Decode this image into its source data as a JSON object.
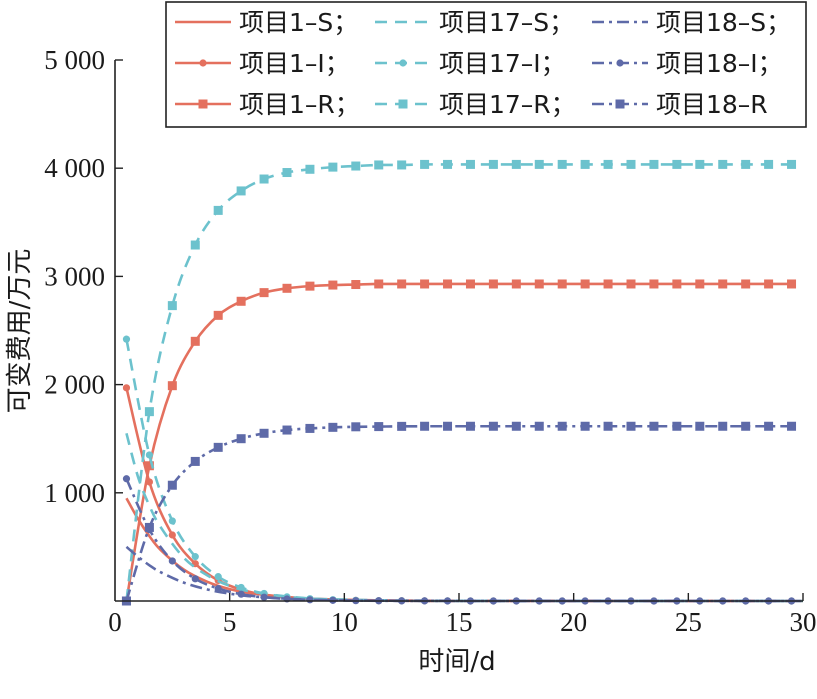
{
  "chart_data": {
    "type": "line",
    "title": "",
    "xlabel": "时间/d",
    "ylabel": "可变费用/万元",
    "xlim": [
      0,
      30
    ],
    "ylim": [
      0,
      5000
    ],
    "x_ticks": [
      0,
      5,
      10,
      15,
      20,
      25,
      30
    ],
    "x_tick_labels": [
      "0",
      "5",
      "10",
      "15",
      "20",
      "25",
      "30"
    ],
    "y_ticks": [
      1000,
      2000,
      3000,
      4000,
      5000
    ],
    "y_tick_labels": [
      "1 000",
      "2 000",
      "3 000",
      "4 000",
      "5 000"
    ],
    "grid": false,
    "legend_position": "top-right",
    "marker_x": [
      0.5,
      1.5,
      2.5,
      3.5,
      4.5,
      5.5,
      6.5,
      7.5,
      8.5,
      9.5,
      10.5,
      11.5,
      12.5,
      13.5,
      14.5,
      15.5,
      16.5,
      17.5,
      18.5,
      19.5,
      20.5,
      21.5,
      22.5,
      23.5,
      24.5,
      25.5,
      26.5,
      27.5,
      28.5,
      29.5
    ],
    "series": [
      {
        "name": "项目1–S；",
        "project": "1",
        "kind": "S",
        "color": "#e4705e",
        "dash": "solid",
        "marker": "none",
        "x": [
          0.5,
          1,
          1.5,
          2,
          3,
          4,
          5,
          6,
          8,
          10,
          15,
          30
        ],
        "values": [
          950,
          760,
          600,
          470,
          290,
          180,
          110,
          70,
          28,
          12,
          2,
          0
        ]
      },
      {
        "name": "项目1–I；",
        "project": "1",
        "kind": "I",
        "color": "#e4705e",
        "dash": "solid",
        "marker": "circle",
        "x": [
          0.5,
          1.5,
          2.5,
          3.5,
          4.5,
          5.5,
          6.5,
          7.5,
          8.5,
          9.5,
          10.5,
          11.5,
          12.5,
          13.5,
          14.5,
          15.5,
          16.5,
          17.5,
          18.5,
          19.5,
          20.5,
          21.5,
          22.5,
          23.5,
          24.5,
          25.5,
          26.5,
          27.5,
          28.5,
          29.5
        ],
        "values": [
          1970,
          1100,
          610,
          345,
          190,
          105,
          58,
          32,
          18,
          10,
          6,
          3,
          2,
          1,
          1,
          0,
          0,
          0,
          0,
          0,
          0,
          0,
          0,
          0,
          0,
          0,
          0,
          0,
          0,
          0
        ]
      },
      {
        "name": "项目1–R；",
        "project": "1",
        "kind": "R",
        "color": "#e4705e",
        "dash": "solid",
        "marker": "square",
        "x": [
          0.5,
          1.5,
          2.5,
          3.5,
          4.5,
          5.5,
          6.5,
          7.5,
          8.5,
          9.5,
          10.5,
          11.5,
          12.5,
          13.5,
          14.5,
          15.5,
          16.5,
          17.5,
          18.5,
          19.5,
          20.5,
          21.5,
          22.5,
          23.5,
          24.5,
          25.5,
          26.5,
          27.5,
          28.5,
          29.5
        ],
        "values": [
          0,
          1250,
          1990,
          2400,
          2640,
          2770,
          2850,
          2890,
          2910,
          2920,
          2925,
          2930,
          2930,
          2930,
          2930,
          2930,
          2930,
          2930,
          2930,
          2930,
          2930,
          2930,
          2930,
          2930,
          2930,
          2930,
          2930,
          2930,
          2930,
          2930
        ]
      },
      {
        "name": "项目17–S；",
        "project": "17",
        "kind": "S",
        "color": "#6cc2cd",
        "dash": "dashed",
        "marker": "none",
        "x": [
          0.5,
          1,
          1.5,
          2,
          3,
          4,
          5,
          6,
          8,
          10,
          15,
          30
        ],
        "values": [
          1550,
          1150,
          880,
          680,
          400,
          240,
          140,
          85,
          32,
          13,
          2,
          0
        ]
      },
      {
        "name": "项目17–I；",
        "project": "17",
        "kind": "I",
        "color": "#6cc2cd",
        "dash": "dashed",
        "marker": "circle",
        "x": [
          0.5,
          1.5,
          2.5,
          3.5,
          4.5,
          5.5,
          6.5,
          7.5,
          8.5,
          9.5,
          10.5,
          11.5,
          12.5,
          13.5,
          14.5,
          15.5,
          16.5,
          17.5,
          18.5,
          19.5,
          20.5,
          21.5,
          22.5,
          23.5,
          24.5,
          25.5,
          26.5,
          27.5,
          28.5,
          29.5
        ],
        "values": [
          2420,
          1350,
          740,
          410,
          225,
          125,
          70,
          38,
          21,
          12,
          6,
          3,
          2,
          1,
          1,
          0,
          0,
          0,
          0,
          0,
          0,
          0,
          0,
          0,
          0,
          0,
          0,
          0,
          0,
          0
        ]
      },
      {
        "name": "项目17–R；",
        "project": "17",
        "kind": "R",
        "color": "#6cc2cd",
        "dash": "dashed",
        "marker": "square",
        "x": [
          0.5,
          1.5,
          2.5,
          3.5,
          4.5,
          5.5,
          6.5,
          7.5,
          8.5,
          9.5,
          10.5,
          11.5,
          12.5,
          13.5,
          14.5,
          15.5,
          16.5,
          17.5,
          18.5,
          19.5,
          20.5,
          21.5,
          22.5,
          23.5,
          24.5,
          25.5,
          26.5,
          27.5,
          28.5,
          29.5
        ],
        "values": [
          0,
          1750,
          2730,
          3290,
          3610,
          3790,
          3900,
          3960,
          3990,
          4010,
          4020,
          4030,
          4030,
          4035,
          4035,
          4035,
          4035,
          4035,
          4035,
          4035,
          4035,
          4035,
          4035,
          4035,
          4035,
          4035,
          4035,
          4035,
          4035,
          4035
        ]
      },
      {
        "name": "项目18–S；",
        "project": "18",
        "kind": "S",
        "color": "#5e6aa8",
        "dash": "dashdot",
        "marker": "none",
        "x": [
          0.5,
          1,
          1.5,
          2,
          3,
          4,
          5,
          6,
          8,
          10,
          15,
          30
        ],
        "values": [
          500,
          410,
          330,
          265,
          170,
          108,
          68,
          42,
          16,
          6,
          1,
          0
        ]
      },
      {
        "name": "项目18–I；",
        "project": "18",
        "kind": "I",
        "color": "#5e6aa8",
        "dash": "dashdot",
        "marker": "circle",
        "x": [
          0.5,
          1.5,
          2.5,
          3.5,
          4.5,
          5.5,
          6.5,
          7.5,
          8.5,
          9.5,
          10.5,
          11.5,
          12.5,
          13.5,
          14.5,
          15.5,
          16.5,
          17.5,
          18.5,
          19.5,
          20.5,
          21.5,
          22.5,
          23.5,
          24.5,
          25.5,
          26.5,
          27.5,
          28.5,
          29.5
        ],
        "values": [
          1130,
          660,
          370,
          205,
          115,
          63,
          35,
          19,
          11,
          6,
          3,
          2,
          1,
          1,
          0,
          0,
          0,
          0,
          0,
          0,
          0,
          0,
          0,
          0,
          0,
          0,
          0,
          0,
          0,
          0
        ]
      },
      {
        "name": "项目18–R",
        "project": "18",
        "kind": "R",
        "color": "#5e6aa8",
        "dash": "dashdot",
        "marker": "square",
        "x": [
          0.5,
          1.5,
          2.5,
          3.5,
          4.5,
          5.5,
          6.5,
          7.5,
          8.5,
          9.5,
          10.5,
          11.5,
          12.5,
          13.5,
          14.5,
          15.5,
          16.5,
          17.5,
          18.5,
          19.5,
          20.5,
          21.5,
          22.5,
          23.5,
          24.5,
          25.5,
          26.5,
          27.5,
          28.5,
          29.5
        ],
        "values": [
          0,
          680,
          1070,
          1290,
          1420,
          1500,
          1550,
          1580,
          1595,
          1605,
          1610,
          1612,
          1614,
          1615,
          1615,
          1615,
          1615,
          1615,
          1615,
          1615,
          1615,
          1615,
          1615,
          1615,
          1615,
          1615,
          1615,
          1615,
          1615,
          1615
        ]
      }
    ]
  }
}
